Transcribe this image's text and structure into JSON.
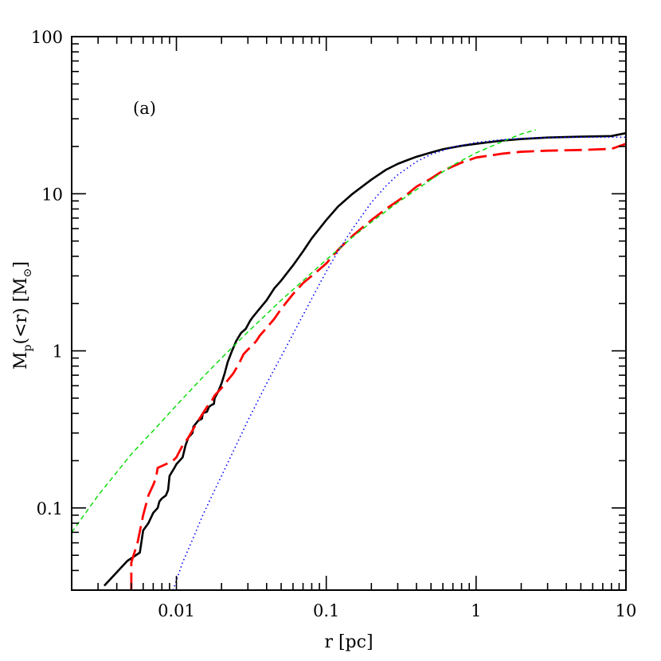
{
  "chart_data": {
    "type": "line",
    "panel_label": "(a)",
    "xlabel": "r [pc]",
    "ylabel": {
      "main": "M",
      "sub": "p",
      "tail": "(<r)  [M",
      "unit_symbol": "⊙",
      "close": "]"
    },
    "xscale": "log",
    "yscale": "log",
    "xlim": [
      0.002,
      10
    ],
    "ylim": [
      0.03,
      100
    ],
    "x_ticklabels": [
      "0.01",
      "0.1",
      "1",
      "10"
    ],
    "y_ticklabels": [
      "0.1",
      "1",
      "10",
      "100"
    ],
    "grid": false,
    "series": [
      {
        "style": "solid",
        "color": "#000000",
        "x": [
          0.0033,
          0.0047,
          0.0057,
          0.006,
          0.0065,
          0.007,
          0.0075,
          0.0077,
          0.008,
          0.0085,
          0.0088,
          0.009,
          0.0097,
          0.01,
          0.011,
          0.0115,
          0.012,
          0.0128,
          0.013,
          0.014,
          0.0148,
          0.015,
          0.016,
          0.0165,
          0.017,
          0.0178,
          0.018,
          0.019,
          0.02,
          0.021,
          0.022,
          0.0235,
          0.025,
          0.027,
          0.029,
          0.031,
          0.032,
          0.035,
          0.04,
          0.045,
          0.05,
          0.06,
          0.07,
          0.08,
          0.1,
          0.12,
          0.15,
          0.2,
          0.25,
          0.3,
          0.35,
          0.4,
          0.5,
          0.6,
          0.8,
          1.0,
          1.5,
          2,
          3,
          5,
          8,
          10
        ],
        "y": [
          0.032,
          0.046,
          0.052,
          0.072,
          0.08,
          0.093,
          0.1,
          0.11,
          0.115,
          0.12,
          0.13,
          0.16,
          0.18,
          0.19,
          0.21,
          0.25,
          0.28,
          0.3,
          0.33,
          0.36,
          0.37,
          0.4,
          0.41,
          0.44,
          0.45,
          0.46,
          0.5,
          0.55,
          0.62,
          0.72,
          0.85,
          1.0,
          1.15,
          1.3,
          1.38,
          1.55,
          1.62,
          1.8,
          2.1,
          2.5,
          2.8,
          3.5,
          4.3,
          5.2,
          6.8,
          8.3,
          10.0,
          12.3,
          14.2,
          15.5,
          16.4,
          17.2,
          18.3,
          19.2,
          20.2,
          20.8,
          21.8,
          22.3,
          22.8,
          23.1,
          23.3,
          24.3
        ]
      },
      {
        "style": "long-dash",
        "color": "#ff0000",
        "x": [
          0.005,
          0.005,
          0.0055,
          0.006,
          0.0065,
          0.007,
          0.0073,
          0.0075,
          0.0085,
          0.0095,
          0.01,
          0.0105,
          0.011,
          0.012,
          0.013,
          0.014,
          0.015,
          0.016,
          0.017,
          0.018,
          0.019,
          0.02,
          0.022,
          0.024,
          0.026,
          0.028,
          0.03,
          0.032,
          0.034,
          0.036,
          0.04,
          0.045,
          0.05,
          0.06,
          0.07,
          0.08,
          0.09,
          0.1,
          0.12,
          0.15,
          0.2,
          0.25,
          0.3,
          0.35,
          0.4,
          0.5,
          0.6,
          0.8,
          1.0,
          1.5,
          2,
          3,
          5,
          8,
          10
        ],
        "y": [
          0.03,
          0.045,
          0.06,
          0.09,
          0.12,
          0.14,
          0.155,
          0.18,
          0.19,
          0.2,
          0.21,
          0.23,
          0.25,
          0.28,
          0.32,
          0.36,
          0.4,
          0.44,
          0.47,
          0.52,
          0.55,
          0.58,
          0.65,
          0.72,
          0.82,
          0.95,
          1.02,
          1.08,
          1.15,
          1.25,
          1.4,
          1.6,
          1.85,
          2.3,
          2.7,
          3.0,
          3.3,
          3.6,
          4.4,
          5.4,
          6.8,
          8.0,
          9.0,
          10.0,
          11.1,
          12.5,
          14.0,
          15.8,
          17.0,
          18.0,
          18.5,
          18.8,
          19.0,
          19.3,
          20.8
        ]
      },
      {
        "style": "short-dash",
        "color": "#00dd00",
        "x": [
          0.002,
          0.003,
          0.005,
          0.007,
          0.01,
          0.015,
          0.02,
          0.03,
          0.05,
          0.07,
          0.1,
          0.15,
          0.2,
          0.3,
          0.5,
          0.7,
          1.0,
          1.5,
          2.0,
          2.5
        ],
        "y": [
          0.07,
          0.12,
          0.22,
          0.31,
          0.45,
          0.68,
          0.9,
          1.32,
          2.1,
          2.8,
          3.8,
          5.3,
          6.6,
          8.8,
          12.3,
          15.2,
          18.2,
          21.5,
          24.0,
          25.5
        ]
      },
      {
        "style": "dotted",
        "color": "#0000ff",
        "x": [
          0.0095,
          0.011,
          0.013,
          0.015,
          0.018,
          0.02,
          0.025,
          0.03,
          0.04,
          0.05,
          0.06,
          0.08,
          0.1,
          0.12,
          0.15,
          0.2,
          0.25,
          0.3,
          0.4,
          0.5,
          0.7,
          1.0,
          1.5,
          2,
          3,
          5,
          10
        ],
        "y": [
          0.03,
          0.045,
          0.065,
          0.09,
          0.13,
          0.16,
          0.25,
          0.36,
          0.62,
          0.92,
          1.28,
          2.15,
          3.2,
          4.3,
          6.0,
          8.8,
          11.2,
          13.2,
          16.0,
          17.8,
          19.8,
          21.2,
          22.1,
          22.5,
          22.8,
          22.9,
          22.9
        ]
      }
    ]
  }
}
